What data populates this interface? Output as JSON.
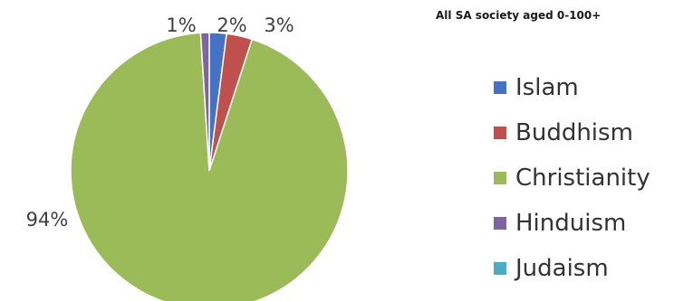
{
  "chart_data": {
    "type": "pie",
    "title": "All SA society aged 0-100+",
    "legend_position": "right",
    "slices": [
      {
        "name": "Islam",
        "value": 2,
        "label": "2%",
        "color": "#4472c4"
      },
      {
        "name": "Buddhism",
        "value": 3,
        "label": "3%",
        "color": "#c0504d"
      },
      {
        "name": "Christianity",
        "value": 94,
        "label": "94%",
        "color": "#9bbb59"
      },
      {
        "name": "Hinduism",
        "value": 1,
        "label": "1%",
        "color": "#8064a2"
      },
      {
        "name": "Judaism",
        "value": 0,
        "label": "",
        "color": "#4bacc6"
      }
    ]
  }
}
